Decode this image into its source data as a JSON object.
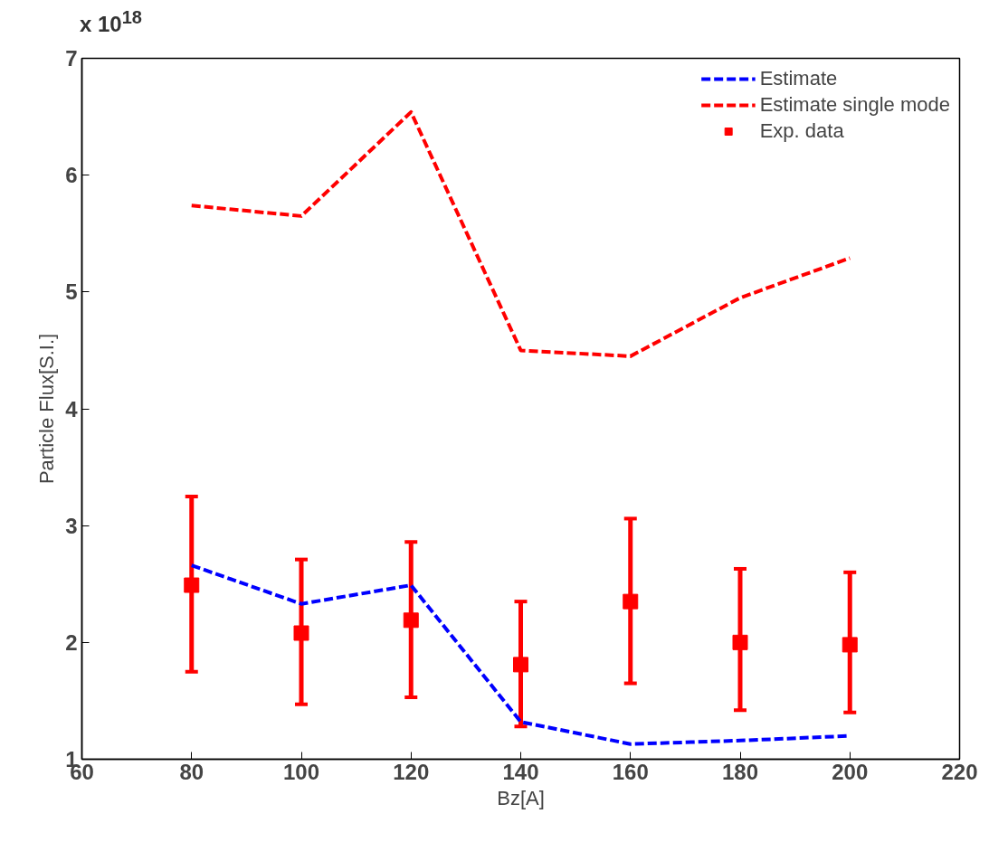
{
  "chart_data": {
    "type": "line",
    "xlabel": "Bz[A]",
    "ylabel": "Particle Flux[S.I.]",
    "annotations": [
      "x 10$^{18}$"
    ],
    "x": [
      80,
      100,
      120,
      140,
      160,
      180,
      200
    ],
    "series": [
      {
        "name": "Estimate",
        "color": "#0000ff",
        "line_style": "dashed",
        "marker": "none",
        "values": [
          2.66,
          2.33,
          2.49,
          1.32,
          1.13,
          1.16,
          1.2
        ]
      },
      {
        "name": "Estimate single mode",
        "color": "#ff0000",
        "line_style": "dashed",
        "marker": "none",
        "values": [
          5.74,
          5.65,
          6.54,
          4.5,
          4.45,
          4.95,
          5.29
        ]
      },
      {
        "name": "Exp. data",
        "type": "scatter",
        "color": "#ff0000",
        "marker": "square",
        "values": [
          2.49,
          2.08,
          2.19,
          1.81,
          2.35,
          2.0,
          1.98
        ],
        "errors": [
          [
            1.75,
            3.25
          ],
          [
            1.47,
            2.71
          ],
          [
            1.53,
            2.86
          ],
          [
            1.28,
            2.35
          ],
          [
            1.65,
            3.06
          ],
          [
            1.42,
            2.63
          ],
          [
            1.4,
            2.6
          ]
        ]
      }
    ],
    "xlim": [
      60,
      220
    ],
    "xticks": [
      60,
      80,
      100,
      120,
      140,
      160,
      180,
      200,
      220
    ],
    "ylim": [
      1,
      7
    ],
    "yticks": [
      1,
      2,
      3,
      4,
      5,
      6,
      7
    ],
    "legend": "top right"
  }
}
